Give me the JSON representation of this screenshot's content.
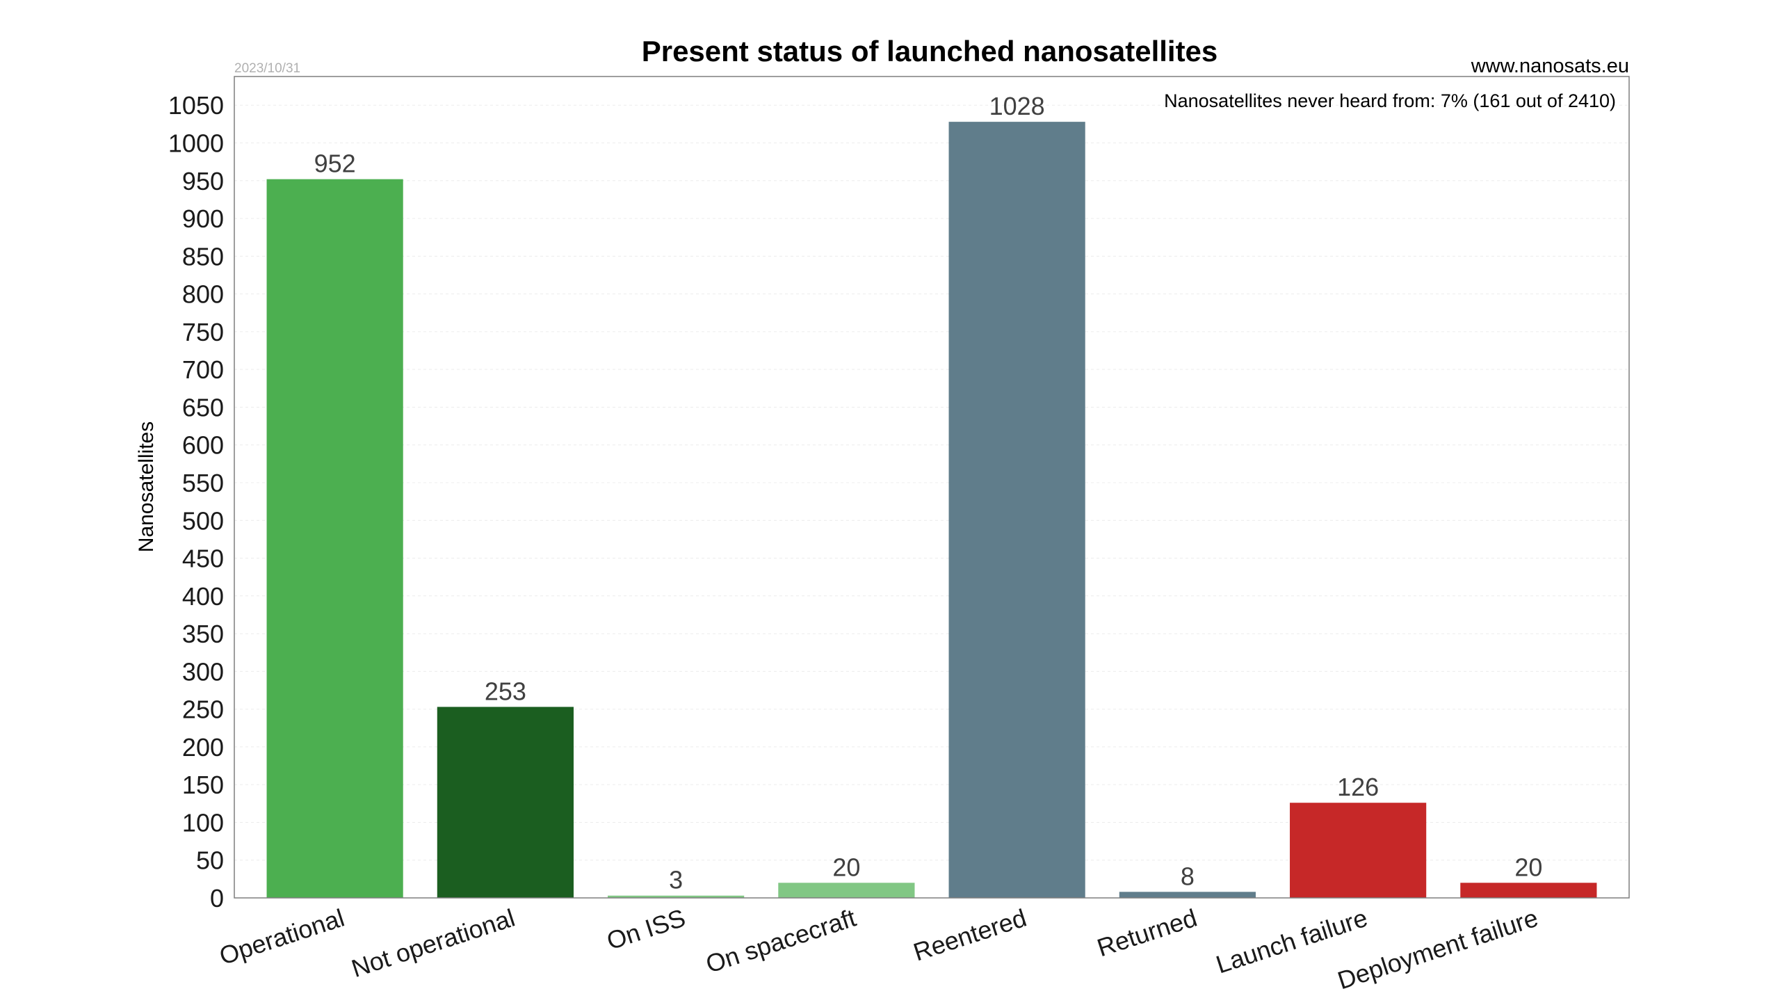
{
  "header": {
    "date": "2023/10/31",
    "source": "www.nanosats.eu"
  },
  "chart_data": {
    "type": "bar",
    "title": "Present status of launched nanosatellites",
    "xlabel": "",
    "ylabel": "Nanosatellites",
    "annotation": "Nanosatellites never heard from: 7% (161 out of 2410)",
    "categories": [
      "Operational",
      "Not operational",
      "On ISS",
      "On spacecraft",
      "Reentered",
      "Returned",
      "Launch failure",
      "Deployment failure"
    ],
    "values": [
      952,
      253,
      3,
      20,
      1028,
      8,
      126,
      20
    ],
    "colors": [
      "#4caf50",
      "#1b5e20",
      "#81c784",
      "#81c784",
      "#607d8b",
      "#607d8b",
      "#c62828",
      "#c62828"
    ],
    "ylim": [
      0,
      1088
    ],
    "yticks": [
      0,
      50,
      100,
      150,
      200,
      250,
      300,
      350,
      400,
      450,
      500,
      550,
      600,
      650,
      700,
      750,
      800,
      850,
      900,
      950,
      1000,
      1050
    ],
    "grid": true,
    "legend": "none"
  }
}
